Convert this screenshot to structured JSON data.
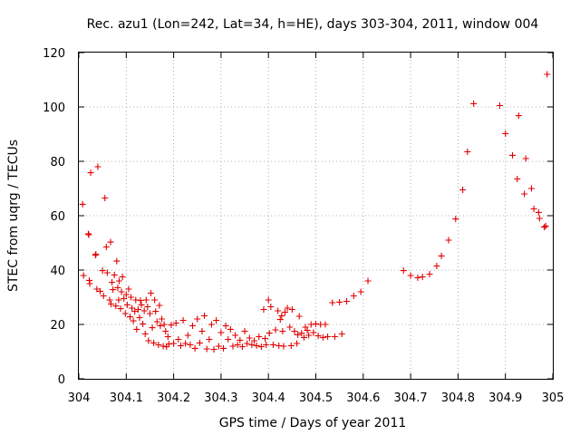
{
  "chart_data": {
    "type": "scatter",
    "title": "Rec. azu1 (Lon=242, Lat=34, h=HE), days 303-304, 2011, window 004",
    "xlabel": "GPS time / Days of year 2011",
    "ylabel": "STEC from uqrg / TECUs",
    "xlim": [
      304,
      305
    ],
    "ylim": [
      0,
      120
    ],
    "x_ticks": [
      304,
      304.1,
      304.2,
      304.3,
      304.4,
      304.5,
      304.6,
      304.7,
      304.8,
      304.9,
      305
    ],
    "x_tick_labels": [
      "304",
      "304.1",
      "304.2",
      "304.3",
      "304.4",
      "304.5",
      "304.6",
      "304.7",
      "304.8",
      "304.9",
      "305"
    ],
    "y_ticks": [
      0,
      20,
      40,
      60,
      80,
      100,
      120
    ],
    "y_tick_labels": [
      "0",
      "20",
      "40",
      "60",
      "80",
      "100",
      "120"
    ],
    "grid": true,
    "marker": "plus",
    "color": "#e00000",
    "points": [
      [
        304.008,
        64.2
      ],
      [
        304.01,
        38.0
      ],
      [
        304.02,
        53.3
      ],
      [
        304.021,
        53.0
      ],
      [
        304.022,
        36.2
      ],
      [
        304.023,
        35.0
      ],
      [
        304.025,
        75.8
      ],
      [
        304.035,
        45.5
      ],
      [
        304.036,
        45.8
      ],
      [
        304.038,
        33.0
      ],
      [
        304.04,
        78.0
      ],
      [
        304.045,
        32.2
      ],
      [
        304.05,
        39.8
      ],
      [
        304.052,
        30.5
      ],
      [
        304.055,
        66.5
      ],
      [
        304.058,
        48.5
      ],
      [
        304.06,
        39.0
      ],
      [
        304.065,
        29.0
      ],
      [
        304.067,
        50.3
      ],
      [
        304.068,
        27.5
      ],
      [
        304.07,
        35.5
      ],
      [
        304.072,
        32.8
      ],
      [
        304.075,
        38.2
      ],
      [
        304.078,
        26.8
      ],
      [
        304.08,
        43.3
      ],
      [
        304.082,
        33.5
      ],
      [
        304.084,
        29.0
      ],
      [
        304.085,
        36.0
      ],
      [
        304.088,
        25.8
      ],
      [
        304.09,
        32.0
      ],
      [
        304.092,
        37.5
      ],
      [
        304.095,
        29.5
      ],
      [
        304.098,
        24.0
      ],
      [
        304.1,
        31.0
      ],
      [
        304.102,
        27.2
      ],
      [
        304.105,
        33.0
      ],
      [
        304.108,
        22.8
      ],
      [
        304.11,
        30.0
      ],
      [
        304.112,
        26.0
      ],
      [
        304.115,
        21.3
      ],
      [
        304.118,
        24.8
      ],
      [
        304.12,
        29.0
      ],
      [
        304.122,
        18.2
      ],
      [
        304.125,
        25.5
      ],
      [
        304.128,
        22.5
      ],
      [
        304.13,
        28.8
      ],
      [
        304.132,
        27.2
      ],
      [
        304.135,
        20.2
      ],
      [
        304.138,
        25.0
      ],
      [
        304.14,
        16.5
      ],
      [
        304.142,
        29.0
      ],
      [
        304.145,
        26.5
      ],
      [
        304.147,
        14.0
      ],
      [
        304.15,
        24.0
      ],
      [
        304.152,
        31.5
      ],
      [
        304.155,
        18.8
      ],
      [
        304.158,
        13.2
      ],
      [
        304.16,
        29.0
      ],
      [
        304.162,
        24.8
      ],
      [
        304.165,
        21.0
      ],
      [
        304.168,
        12.5
      ],
      [
        304.17,
        27.0
      ],
      [
        304.172,
        19.5
      ],
      [
        304.175,
        22.0
      ],
      [
        304.178,
        12.0
      ],
      [
        304.18,
        20.0
      ],
      [
        304.183,
        17.5
      ],
      [
        304.185,
        11.8
      ],
      [
        304.188,
        15.5
      ],
      [
        304.19,
        12.8
      ],
      [
        304.195,
        19.8
      ],
      [
        304.2,
        13.0
      ],
      [
        304.205,
        20.5
      ],
      [
        304.21,
        14.5
      ],
      [
        304.215,
        12.2
      ],
      [
        304.22,
        21.5
      ],
      [
        304.225,
        13.0
      ],
      [
        304.23,
        16.0
      ],
      [
        304.235,
        12.5
      ],
      [
        304.24,
        19.5
      ],
      [
        304.245,
        11.2
      ],
      [
        304.25,
        22.0
      ],
      [
        304.255,
        13.2
      ],
      [
        304.26,
        17.5
      ],
      [
        304.265,
        23.2
      ],
      [
        304.27,
        11.0
      ],
      [
        304.275,
        14.5
      ],
      [
        304.28,
        20.0
      ],
      [
        304.285,
        10.8
      ],
      [
        304.29,
        21.5
      ],
      [
        304.295,
        12.0
      ],
      [
        304.3,
        17.0
      ],
      [
        304.305,
        11.2
      ],
      [
        304.31,
        19.5
      ],
      [
        304.315,
        14.5
      ],
      [
        304.32,
        18.2
      ],
      [
        304.325,
        12.0
      ],
      [
        304.33,
        16.0
      ],
      [
        304.335,
        12.5
      ],
      [
        304.34,
        14.2
      ],
      [
        304.345,
        11.8
      ],
      [
        304.35,
        17.5
      ],
      [
        304.355,
        13.0
      ],
      [
        304.36,
        15.0
      ],
      [
        304.365,
        12.5
      ],
      [
        304.37,
        14.0
      ],
      [
        304.375,
        12.2
      ],
      [
        304.38,
        15.5
      ],
      [
        304.385,
        11.8
      ],
      [
        304.39,
        25.5
      ],
      [
        304.393,
        14.8
      ],
      [
        304.395,
        12.5
      ],
      [
        304.4,
        29.0
      ],
      [
        304.402,
        16.8
      ],
      [
        304.405,
        26.5
      ],
      [
        304.41,
        12.5
      ],
      [
        304.415,
        18.0
      ],
      [
        304.42,
        25.0
      ],
      [
        304.422,
        12.2
      ],
      [
        304.425,
        21.8
      ],
      [
        304.428,
        23.2
      ],
      [
        304.43,
        17.5
      ],
      [
        304.432,
        12.0
      ],
      [
        304.435,
        24.5
      ],
      [
        304.44,
        26.0
      ],
      [
        304.445,
        19.0
      ],
      [
        304.448,
        12.2
      ],
      [
        304.45,
        25.5
      ],
      [
        304.455,
        17.5
      ],
      [
        304.46,
        13.0
      ],
      [
        304.462,
        16.2
      ],
      [
        304.465,
        23.0
      ],
      [
        304.47,
        16.8
      ],
      [
        304.475,
        15.2
      ],
      [
        304.478,
        19.0
      ],
      [
        304.482,
        17.8
      ],
      [
        304.485,
        16.0
      ],
      [
        304.49,
        20.0
      ],
      [
        304.495,
        17.0
      ],
      [
        304.5,
        20.2
      ],
      [
        304.505,
        15.8
      ],
      [
        304.51,
        20.0
      ],
      [
        304.515,
        15.2
      ],
      [
        304.52,
        20.0
      ],
      [
        304.525,
        15.5
      ],
      [
        304.535,
        28.0
      ],
      [
        304.54,
        15.5
      ],
      [
        304.55,
        28.2
      ],
      [
        304.555,
        16.5
      ],
      [
        304.565,
        28.5
      ],
      [
        304.58,
        30.5
      ],
      [
        304.595,
        32.0
      ],
      [
        304.61,
        36.0
      ],
      [
        304.685,
        39.8
      ],
      [
        304.7,
        38.0
      ],
      [
        304.715,
        37.2
      ],
      [
        304.725,
        37.5
      ],
      [
        304.74,
        38.5
      ],
      [
        304.755,
        41.5
      ],
      [
        304.765,
        45.2
      ],
      [
        304.78,
        51.0
      ],
      [
        304.795,
        58.8
      ],
      [
        304.81,
        69.5
      ],
      [
        304.82,
        83.5
      ],
      [
        304.833,
        101.2
      ],
      [
        304.888,
        100.5
      ],
      [
        304.9,
        90.2
      ],
      [
        304.915,
        82.2
      ],
      [
        304.925,
        73.5
      ],
      [
        304.928,
        96.8
      ],
      [
        304.94,
        68.0
      ],
      [
        304.943,
        81.0
      ],
      [
        304.955,
        70.0
      ],
      [
        304.96,
        62.5
      ],
      [
        304.97,
        61.2
      ],
      [
        304.972,
        59.0
      ],
      [
        304.982,
        55.8
      ],
      [
        304.985,
        56.2
      ],
      [
        304.988,
        112.0
      ]
    ]
  }
}
